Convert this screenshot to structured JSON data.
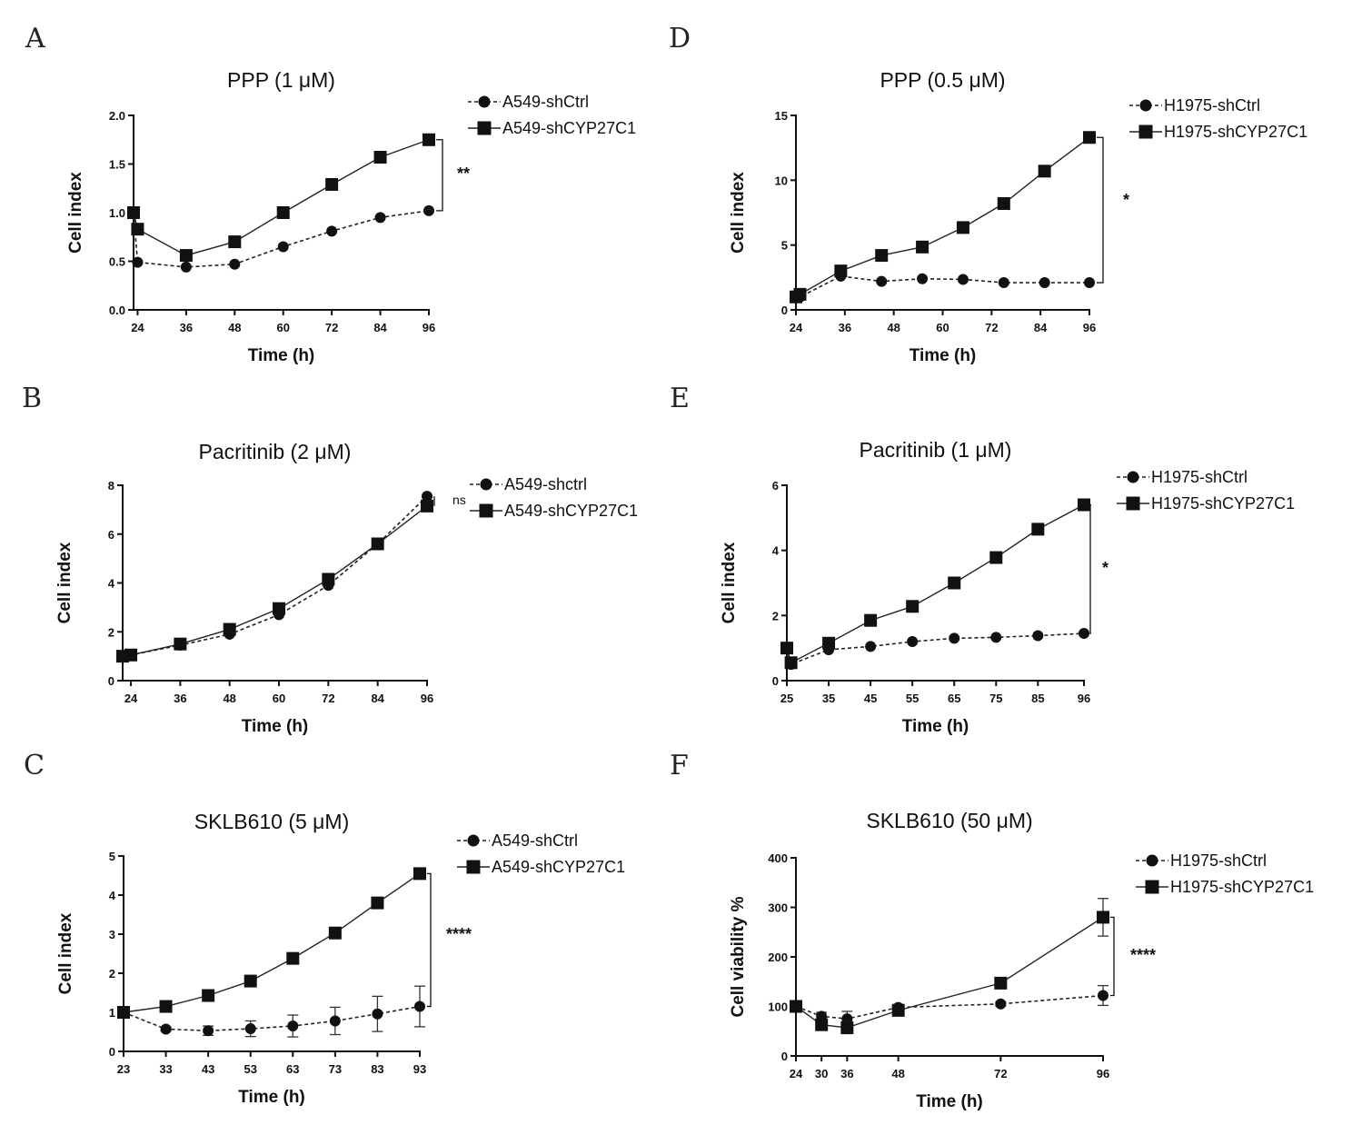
{
  "chart_data": [
    {
      "id": "A",
      "panel_letter": "A",
      "type": "line",
      "title": "PPP (1 μM)",
      "xlabel": "Time (h)",
      "ylabel": "Cell index",
      "xlim": [
        23,
        96
      ],
      "ylim": [
        0,
        2.0
      ],
      "xticks": [
        24,
        36,
        48,
        60,
        72,
        84,
        96
      ],
      "xtick_labels": [
        "24",
        "36",
        "48",
        "60",
        "72",
        "84",
        "96"
      ],
      "yticks": [
        0,
        0.5,
        1.0,
        1.5,
        2.0
      ],
      "ytick_labels": [
        "0.0",
        "0.5",
        "1.0",
        "1.5",
        "2.0"
      ],
      "significance": "**",
      "series": [
        {
          "name": "A549-shCtrl",
          "style": "dashed",
          "marker": "circle",
          "x": [
            23,
            24,
            36,
            48,
            60,
            72,
            84,
            96
          ],
          "values": [
            1.0,
            0.49,
            0.44,
            0.47,
            0.65,
            0.81,
            0.95,
            1.02
          ]
        },
        {
          "name": "A549-shCYP27C1",
          "style": "solid",
          "marker": "square",
          "x": [
            23,
            24,
            36,
            48,
            60,
            72,
            84,
            96
          ],
          "values": [
            1.0,
            0.83,
            0.56,
            0.7,
            1.0,
            1.29,
            1.57,
            1.75
          ]
        }
      ]
    },
    {
      "id": "B",
      "panel_letter": "B",
      "type": "line",
      "title": "Pacritinib (2 μM)",
      "xlabel": "Time (h)",
      "ylabel": "Cell index",
      "xlim": [
        22,
        96
      ],
      "ylim": [
        0,
        8
      ],
      "xticks": [
        24,
        36,
        48,
        60,
        72,
        84,
        96
      ],
      "xtick_labels": [
        "24",
        "36",
        "48",
        "60",
        "72",
        "84",
        "96"
      ],
      "yticks": [
        0,
        2,
        4,
        6,
        8
      ],
      "ytick_labels": [
        "0",
        "2",
        "4",
        "6",
        "8"
      ],
      "significance": "ns",
      "series": [
        {
          "name": "A549-shctrl",
          "style": "dashed",
          "marker": "circle",
          "x": [
            22,
            24,
            36,
            48,
            60,
            72,
            84,
            96
          ],
          "values": [
            1.0,
            1.05,
            1.45,
            1.9,
            2.7,
            3.9,
            5.6,
            7.55
          ]
        },
        {
          "name": "A549-shCYP27C1",
          "style": "solid",
          "marker": "square",
          "x": [
            22,
            24,
            36,
            48,
            60,
            72,
            84,
            96
          ],
          "values": [
            1.0,
            1.05,
            1.5,
            2.1,
            2.95,
            4.15,
            5.6,
            7.15
          ]
        }
      ]
    },
    {
      "id": "C",
      "panel_letter": "C",
      "type": "line",
      "title": "SKLB610 (5 μM)",
      "xlabel": "Time (h)",
      "ylabel": "Cell index",
      "xlim": [
        23,
        93
      ],
      "ylim": [
        0,
        5
      ],
      "xticks": [
        23,
        33,
        43,
        53,
        63,
        73,
        83,
        93
      ],
      "xtick_labels": [
        "23",
        "33",
        "43",
        "53",
        "63",
        "73",
        "83",
        "93"
      ],
      "yticks": [
        0,
        1,
        2,
        3,
        4,
        5
      ],
      "ytick_labels": [
        "0",
        "1",
        "2",
        "3",
        "4",
        "5"
      ],
      "significance": "****",
      "series": [
        {
          "name": "A549-shCtrl",
          "style": "dashed",
          "marker": "circle",
          "x": [
            23,
            33,
            43,
            53,
            63,
            73,
            83,
            93
          ],
          "values": [
            1.0,
            0.57,
            0.53,
            0.58,
            0.65,
            0.78,
            0.96,
            1.15
          ],
          "errors": [
            0,
            0.05,
            0.12,
            0.2,
            0.28,
            0.35,
            0.45,
            0.52
          ]
        },
        {
          "name": "A549-shCYP27C1",
          "style": "solid",
          "marker": "square",
          "x": [
            23,
            33,
            43,
            53,
            63,
            73,
            83,
            93
          ],
          "values": [
            1.0,
            1.15,
            1.43,
            1.8,
            2.38,
            3.03,
            3.8,
            4.55
          ]
        }
      ]
    },
    {
      "id": "D",
      "panel_letter": "D",
      "type": "line",
      "title": "PPP (0.5 μM)",
      "xlabel": "Time (h)",
      "ylabel": "Cell index",
      "xlim": [
        24,
        96
      ],
      "ylim": [
        0,
        15
      ],
      "xticks": [
        24,
        36,
        48,
        60,
        72,
        84,
        96
      ],
      "xtick_labels": [
        "24",
        "36",
        "48",
        "60",
        "72",
        "84",
        "96"
      ],
      "yticks": [
        0,
        5,
        10,
        15
      ],
      "ytick_labels": [
        "0",
        "5",
        "10",
        "15"
      ],
      "significance": "*",
      "series": [
        {
          "name": "H1975-shCtrl",
          "style": "dashed",
          "marker": "circle",
          "x": [
            24,
            25,
            35,
            45,
            55,
            65,
            75,
            85,
            96
          ],
          "values": [
            1.0,
            1.0,
            2.6,
            2.2,
            2.4,
            2.35,
            2.1,
            2.1,
            2.1
          ]
        },
        {
          "name": "H1975-shCYP27C1",
          "style": "solid",
          "marker": "square",
          "x": [
            24,
            25,
            35,
            45,
            55,
            65,
            75,
            85,
            96
          ],
          "values": [
            1.0,
            1.2,
            3.0,
            4.2,
            4.85,
            6.35,
            8.2,
            10.7,
            13.3
          ]
        }
      ]
    },
    {
      "id": "E",
      "panel_letter": "E",
      "type": "line",
      "title": "Pacritinib (1 μM)",
      "xlabel": "Time (h)",
      "ylabel": "Cell index",
      "xlim": [
        25,
        96
      ],
      "ylim": [
        0,
        6
      ],
      "xticks": [
        25,
        35,
        45,
        55,
        65,
        75,
        85,
        96
      ],
      "xtick_labels": [
        "25",
        "35",
        "45",
        "55",
        "65",
        "75",
        "85",
        "96"
      ],
      "yticks": [
        0,
        2,
        4,
        6
      ],
      "ytick_labels": [
        "0",
        "2",
        "4",
        "6"
      ],
      "significance": "*",
      "series": [
        {
          "name": "H1975-shCtrl",
          "style": "dashed",
          "marker": "circle",
          "x": [
            25,
            26,
            35,
            45,
            55,
            65,
            75,
            85,
            96
          ],
          "values": [
            1.0,
            0.5,
            0.95,
            1.05,
            1.2,
            1.3,
            1.33,
            1.38,
            1.45
          ]
        },
        {
          "name": "H1975-shCYP27C1",
          "style": "solid",
          "marker": "square",
          "x": [
            25,
            26,
            35,
            45,
            55,
            65,
            75,
            85,
            96
          ],
          "values": [
            1.0,
            0.55,
            1.15,
            1.85,
            2.28,
            3.0,
            3.78,
            4.65,
            5.4
          ]
        }
      ]
    },
    {
      "id": "F",
      "panel_letter": "F",
      "type": "line",
      "title": "SKLB610 (50 μM)",
      "xlabel": "Time (h)",
      "ylabel": "Cell viability %",
      "xlim": [
        24,
        96
      ],
      "ylim": [
        0,
        400
      ],
      "xticks": [
        24,
        30,
        36,
        48,
        72,
        96
      ],
      "xtick_labels": [
        "24",
        "30",
        "36",
        "48",
        "72",
        "96"
      ],
      "yticks": [
        0,
        100,
        200,
        300,
        400
      ],
      "ytick_labels": [
        "0",
        "100",
        "200",
        "300",
        "400"
      ],
      "significance": "****",
      "series": [
        {
          "name": "H1975-shCtrl",
          "style": "dashed",
          "marker": "circle",
          "x": [
            24,
            30,
            36,
            48,
            72,
            96
          ],
          "values": [
            100,
            80,
            75,
            98,
            105,
            122
          ],
          "errors": [
            0,
            8,
            15,
            6,
            4,
            20
          ]
        },
        {
          "name": "H1975-shCYP27C1",
          "style": "solid",
          "marker": "square",
          "x": [
            24,
            30,
            36,
            48,
            72,
            96
          ],
          "values": [
            100,
            63,
            57,
            92,
            147,
            280
          ],
          "errors": [
            0,
            10,
            12,
            5,
            6,
            38
          ]
        }
      ]
    }
  ]
}
